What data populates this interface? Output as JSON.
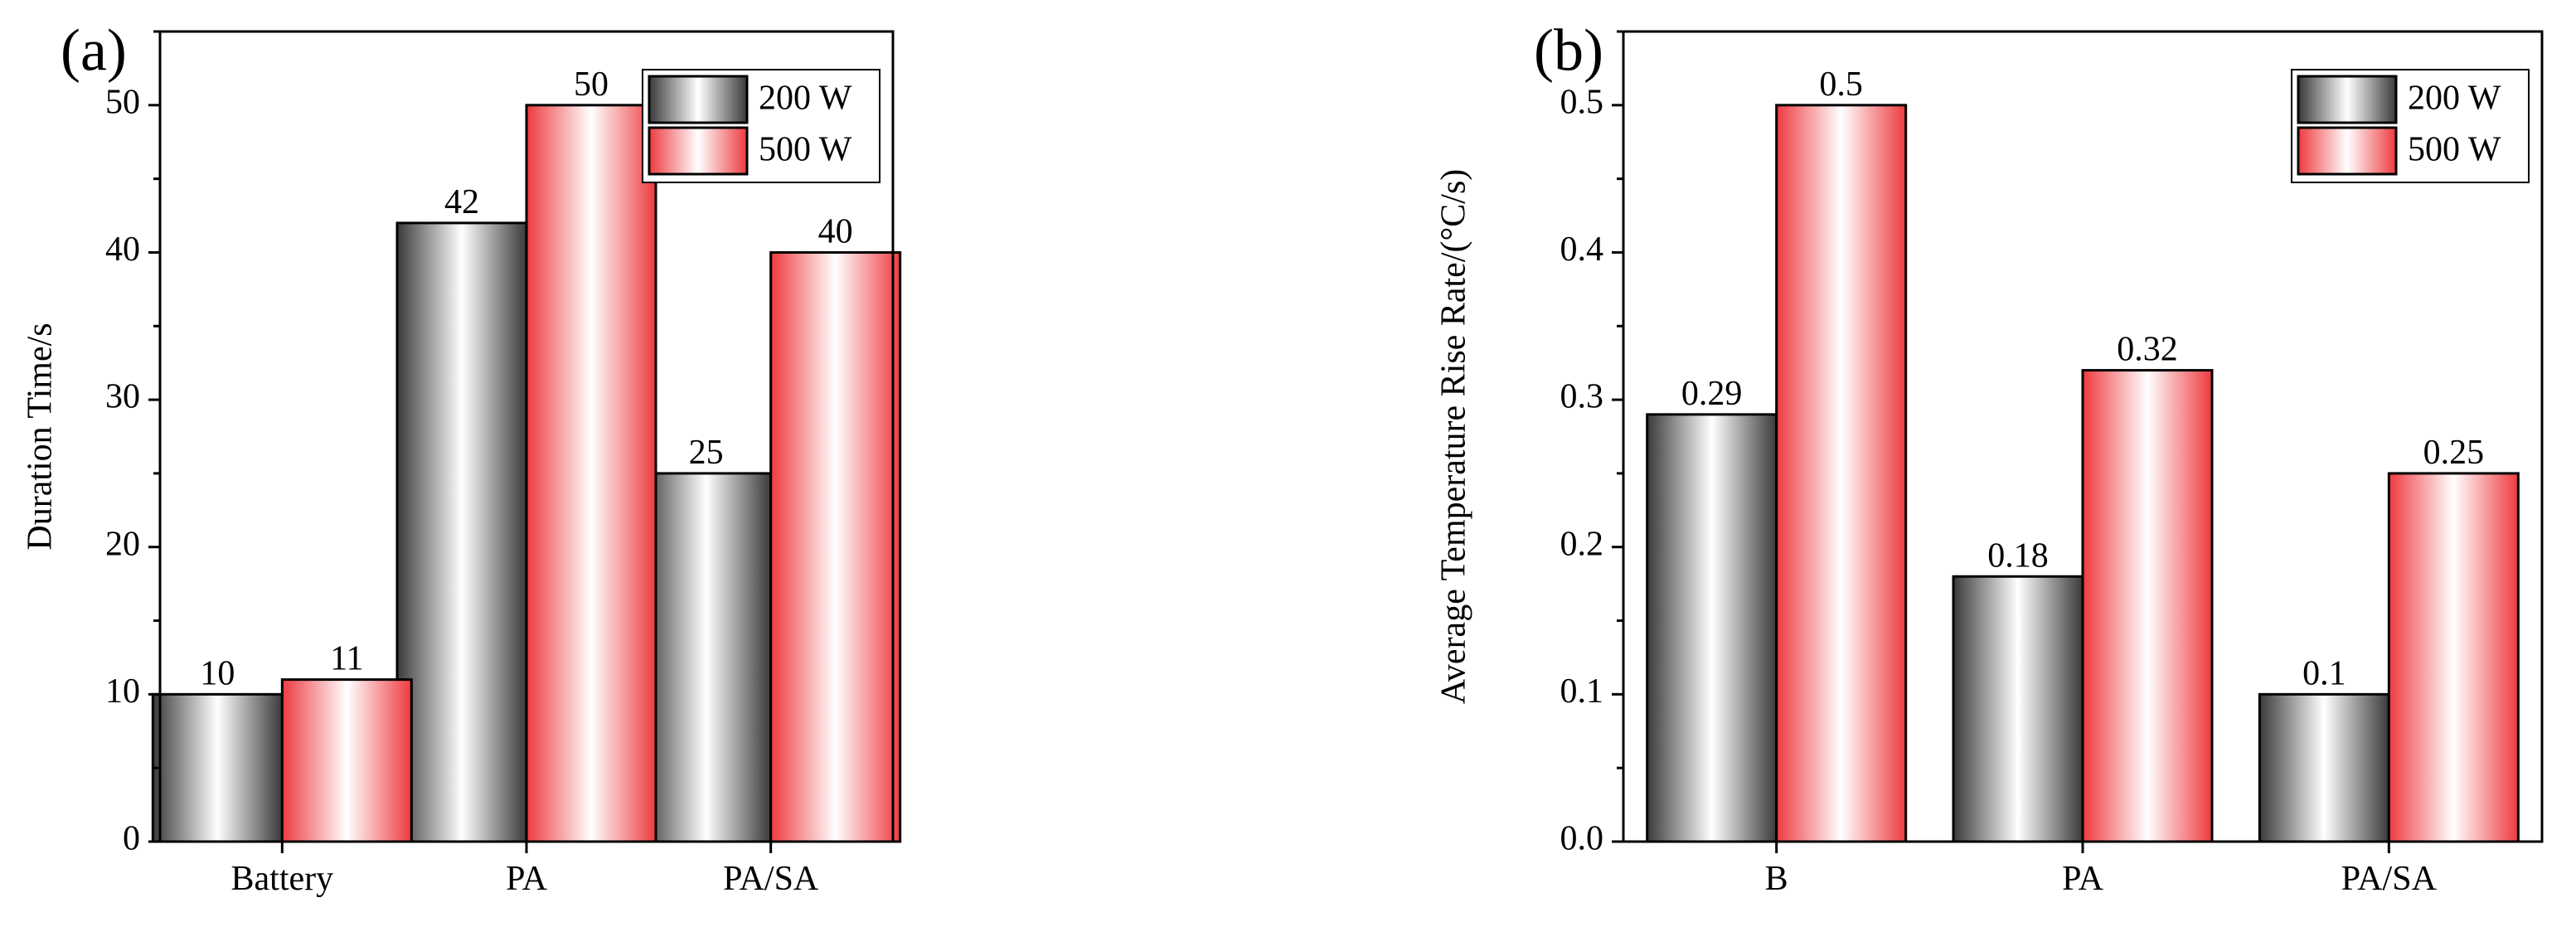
{
  "chart_data": [
    {
      "type": "bar",
      "panel_label": "(a)",
      "title": "",
      "xlabel": "",
      "ylabel": "Duration Time/s",
      "categories": [
        "Battery",
        "PA",
        "PA/SA"
      ],
      "series": [
        {
          "name": "200 W",
          "values": [
            10,
            42,
            25
          ]
        },
        {
          "name": "500 W",
          "values": [
            11,
            50,
            40
          ]
        }
      ],
      "data_labels": [
        [
          "10",
          "42",
          "25"
        ],
        [
          "11",
          "50",
          "40"
        ]
      ],
      "ylim": [
        0,
        55
      ],
      "yticks": [
        0,
        10,
        20,
        30,
        40,
        50
      ],
      "ytick_labels": [
        "0",
        "10",
        "20",
        "30",
        "40",
        "50"
      ],
      "legend_position": "top-right",
      "grid": false
    },
    {
      "type": "bar",
      "panel_label": "(b)",
      "title": "",
      "xlabel": "",
      "ylabel": "Average Temperature Rise Rate/(°C/s)",
      "categories": [
        "B",
        "PA",
        "PA/SA"
      ],
      "series": [
        {
          "name": "200 W",
          "values": [
            0.29,
            0.18,
            0.1
          ]
        },
        {
          "name": "500 W",
          "values": [
            0.5,
            0.32,
            0.25
          ]
        }
      ],
      "data_labels": [
        [
          "0.29",
          "0.18",
          "0.1"
        ],
        [
          "0.5",
          "0.32",
          "0.25"
        ]
      ],
      "ylim": [
        0,
        0.55
      ],
      "yticks": [
        0,
        0.1,
        0.2,
        0.3,
        0.4,
        0.5
      ],
      "ytick_labels": [
        "0.0",
        "0.1",
        "0.2",
        "0.3",
        "0.4",
        "0.5"
      ],
      "legend_position": "top-right",
      "grid": false
    }
  ],
  "colors": {
    "series_200w_dark": "#3a3a3a",
    "series_200w_light": "#ffffff",
    "series_500w_dark": "#ee3a3f",
    "series_500w_light": "#ffffff",
    "axis": "#000000"
  }
}
